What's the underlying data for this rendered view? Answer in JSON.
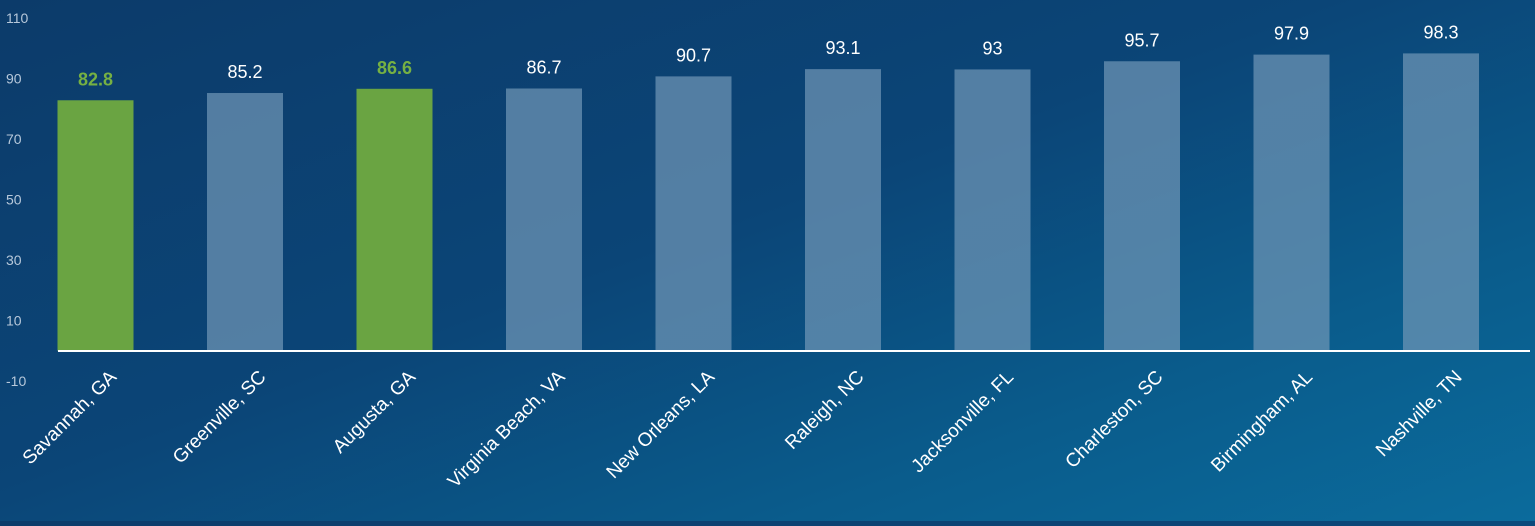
{
  "chart_data": {
    "type": "bar",
    "title": "",
    "xlabel": "",
    "ylabel": "",
    "categories": [
      "Savannah, GA",
      "Greenville, SC",
      "Augusta, GA",
      "Virginia Beach, VA",
      "New Orleans, LA",
      "Raleigh, NC",
      "Jacksonville, FL",
      "Charleston, SC",
      "Birmingham, AL",
      "Nashville, TN"
    ],
    "values": [
      82.8,
      85.2,
      86.6,
      86.7,
      90.7,
      93.1,
      93,
      95.7,
      97.9,
      98.3
    ],
    "value_labels": [
      "82.8",
      "85.2",
      "86.6",
      "86.7",
      "90.7",
      "93.1",
      "93",
      "95.7",
      "97.9",
      "98.3"
    ],
    "highlighted": [
      true,
      false,
      true,
      false,
      false,
      false,
      false,
      false,
      false,
      false
    ],
    "ylim": [
      -10,
      110
    ],
    "yticks": [
      110,
      90,
      70,
      50,
      30,
      10,
      -10
    ],
    "grid": false,
    "legend": "none",
    "colors": {
      "highlight_bar": "#6aa442",
      "highlight_label": "#76b043",
      "bar": "#6f95b5",
      "bar_opacity": 0.72,
      "label": "#ffffff",
      "tick_label": "#b7c8da",
      "baseline": "#ffffff",
      "background_start": "#0c3b6a",
      "background_end": "#0b6b9c"
    }
  }
}
